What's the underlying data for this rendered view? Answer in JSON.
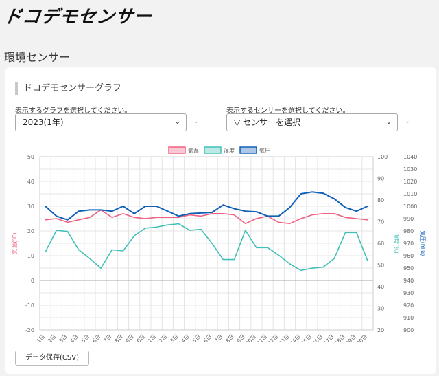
{
  "brand": {
    "logo_text": "ドコデモセンサー"
  },
  "page": {
    "title": "環境センサー"
  },
  "panel": {
    "title": "ドコデモセンサーグラフ",
    "graph_select": {
      "label": "表示するグラフを選択してください。",
      "value": "2023(1年)"
    },
    "sensor_select": {
      "label": "表示するセンサーを選択してください。",
      "value": "▽ センサーを選択"
    },
    "csv_button": "データ保存(CSV)"
  },
  "colors": {
    "temperature": "#f06080",
    "humidity": "#40c0b8",
    "pressure": "#1060b8",
    "grid": "#e4e4e4"
  },
  "chart_data": {
    "type": "line",
    "x": [
      "1日",
      "2日",
      "3日",
      "4日",
      "5日",
      "6日",
      "7日",
      "8日",
      "9日",
      "10日",
      "11日",
      "12日",
      "13日",
      "14日",
      "15日",
      "16日",
      "17日",
      "18日",
      "19日",
      "20日",
      "21日",
      "22日",
      "23日",
      "24日",
      "25日",
      "26日",
      "27日",
      "28日",
      "29日",
      "30日"
    ],
    "legend": [
      "気温",
      "湿度",
      "気圧"
    ],
    "series": [
      {
        "name": "気温",
        "axis": "left",
        "values": [
          24.5,
          25,
          23.5,
          24.5,
          25.5,
          28.5,
          25.5,
          27,
          25.5,
          25,
          25.5,
          25.5,
          25.5,
          26.5,
          26,
          27,
          27,
          26.5,
          23,
          25,
          26,
          23.5,
          23,
          25,
          26.5,
          27,
          27,
          25.5,
          25,
          24.5
        ]
      },
      {
        "name": "湿度",
        "axis": "right",
        "values": [
          56,
          66,
          65.5,
          57,
          53,
          48.5,
          57,
          56.5,
          63.5,
          67,
          67.5,
          68.5,
          69,
          66,
          66.5,
          60,
          52.5,
          52.5,
          66,
          58,
          58,
          54.5,
          50.5,
          47.5,
          48.5,
          49,
          53,
          65,
          65,
          52
        ]
      },
      {
        "name": "気圧",
        "axis": "right2",
        "values": [
          1000,
          992,
          989,
          996,
          997,
          997,
          996,
          1000,
          994,
          1000,
          1000,
          996,
          992,
          994,
          994.5,
          995,
          1001,
          998,
          996,
          995.5,
          992,
          992,
          999,
          1010,
          1011.5,
          1010.5,
          1006,
          999,
          996,
          1000
        ]
      }
    ],
    "y_left": {
      "label": "気温(℃)",
      "ylim": [
        -20,
        50
      ],
      "ticks": [
        50,
        40,
        30,
        20,
        10,
        0,
        -10,
        -20
      ]
    },
    "y_right": {
      "label": "湿度(%)",
      "ylim": [
        20,
        100
      ],
      "ticks": [
        100,
        90,
        80,
        70,
        60,
        50,
        40,
        30,
        20
      ]
    },
    "y_right2": {
      "label": "気圧(hPa)",
      "ylim": [
        900,
        1040
      ],
      "ticks": [
        1040,
        1030,
        1020,
        1010,
        1000,
        990,
        980,
        970,
        960,
        950,
        940,
        930,
        920,
        910,
        900
      ]
    },
    "grid": true,
    "legend_position": "top-center"
  }
}
